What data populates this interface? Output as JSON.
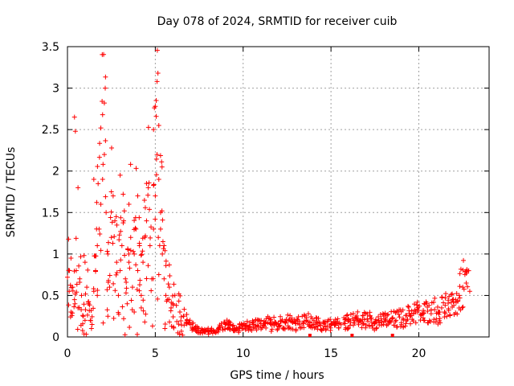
{
  "chart_data": {
    "type": "scatter",
    "title": "Day 078 of 2024, SRMTID for receiver cuib",
    "xlabel": "GPS time / hours",
    "ylabel": "SRMTID / TECUs",
    "xlim": [
      0,
      24
    ],
    "ylim": [
      0,
      3.5
    ],
    "x_ticks": [
      0,
      5,
      10,
      15,
      20
    ],
    "x_tick_labels": [
      "0",
      "5",
      "10",
      "15",
      "20"
    ],
    "y_ticks": [
      0,
      0.5,
      1,
      1.5,
      2,
      2.5,
      3,
      3.5
    ],
    "y_tick_labels": [
      "0",
      "0.5",
      "1",
      "1.5",
      "2",
      "2.5",
      "3",
      "3.5"
    ],
    "grid": true,
    "marker": "+",
    "marker_color": "#ff0000",
    "series": [
      {
        "name": "SRMTID",
        "x": [
          0.0,
          0.1,
          0.2,
          0.3,
          0.4,
          0.5,
          0.6,
          0.7,
          0.8,
          0.9,
          1.0,
          1.1,
          1.2,
          1.3,
          1.4,
          1.5,
          1.6,
          1.7,
          1.8,
          1.9,
          2.0,
          2.1,
          2.2,
          2.3,
          2.4,
          2.5,
          2.6,
          2.7,
          2.8,
          2.9,
          3.0,
          3.1,
          3.2,
          3.3,
          3.4,
          3.5,
          3.6,
          3.7,
          3.8,
          3.9,
          4.0,
          4.1,
          4.2,
          4.3,
          4.4,
          4.5,
          4.6,
          4.7,
          4.8,
          4.9,
          5.0,
          5.1,
          5.2,
          5.3,
          5.4,
          5.5,
          5.6,
          5.7,
          5.8,
          5.9,
          6.0,
          6.2,
          6.4,
          6.6,
          6.8,
          7.0,
          7.2,
          7.4,
          7.6,
          7.8,
          8.0,
          8.2,
          8.4,
          8.6,
          8.8,
          9.0,
          9.2,
          9.4,
          9.6,
          9.8,
          10.0,
          10.2,
          10.4,
          10.6,
          10.8,
          11.0,
          11.2,
          11.4,
          11.6,
          11.8,
          12.0,
          12.2,
          12.4,
          12.6,
          12.8,
          13.0,
          13.2,
          13.4,
          13.6,
          13.8,
          14.0,
          14.2,
          14.4,
          14.6,
          14.8,
          15.0,
          15.2,
          15.4,
          16.3,
          16.5,
          16.7,
          16.9,
          17.1,
          17.3,
          17.5,
          17.7,
          17.9,
          18.1,
          18.3,
          18.5,
          18.7,
          18.9,
          19.1,
          19.3,
          19.5,
          19.7,
          19.9,
          20.1,
          20.3,
          20.5,
          20.7,
          20.9,
          21.1,
          21.3,
          21.5,
          21.7,
          21.9,
          22.1,
          22.3,
          22.5,
          22.7,
          22.9,
          0.4,
          0.45,
          1.9,
          2.0,
          2.1,
          2.15,
          4.9,
          5.0,
          5.05,
          5.1,
          5.15,
          5.2,
          0.6,
          1.5,
          2.5,
          3.0,
          3.5,
          4.0,
          4.5,
          5.3,
          5.5,
          1.0,
          2.3,
          3.8,
          4.4,
          0.2,
          1.7,
          3.2,
          4.2
        ],
        "y": [
          0.72,
          0.55,
          0.3,
          0.6,
          0.45,
          0.8,
          0.35,
          0.7,
          0.5,
          0.25,
          0.9,
          0.6,
          0.4,
          0.2,
          0.15,
          0.55,
          0.8,
          1.1,
          1.3,
          1.6,
          1.9,
          2.2,
          1.5,
          1.0,
          0.6,
          1.2,
          1.7,
          1.4,
          0.9,
          0.5,
          0.8,
          1.1,
          1.4,
          0.7,
          0.4,
          0.9,
          1.2,
          0.6,
          1.0,
          1.3,
          0.8,
          1.1,
          0.5,
          0.9,
          1.2,
          1.4,
          1.8,
          1.1,
          0.7,
          1.3,
          1.7,
          2.2,
          1.9,
          1.3,
          1.0,
          0.7,
          0.5,
          0.45,
          0.6,
          0.35,
          0.4,
          0.38,
          0.3,
          0.25,
          0.2,
          0.15,
          0.1,
          0.08,
          0.07,
          0.06,
          0.07,
          0.08,
          0.06,
          0.1,
          0.12,
          0.15,
          0.14,
          0.1,
          0.09,
          0.11,
          0.1,
          0.13,
          0.12,
          0.15,
          0.14,
          0.16,
          0.13,
          0.17,
          0.15,
          0.18,
          0.16,
          0.19,
          0.17,
          0.2,
          0.18,
          0.16,
          0.19,
          0.17,
          0.2,
          0.18,
          0.15,
          0.17,
          0.14,
          0.16,
          0.13,
          0.15,
          0.14,
          0.16,
          0.2,
          0.22,
          0.18,
          0.21,
          0.19,
          0.23,
          0.17,
          0.2,
          0.18,
          0.21,
          0.19,
          0.22,
          0.2,
          0.24,
          0.22,
          0.26,
          0.25,
          0.28,
          0.3,
          0.27,
          0.29,
          0.31,
          0.28,
          0.33,
          0.3,
          0.35,
          0.38,
          0.32,
          0.36,
          0.45,
          0.5,
          0.6,
          0.65,
          0.55,
          2.65,
          2.48,
          2.52,
          2.68,
          2.82,
          3.0,
          2.5,
          2.78,
          2.85,
          3.08,
          3.18,
          2.55,
          1.8,
          1.9,
          1.75,
          1.95,
          1.6,
          1.7,
          1.85,
          1.5,
          1.1,
          0.2,
          0.25,
          0.3,
          0.18,
          0.95,
          0.5,
          0.22,
          0.35
        ],
        "gaps": [
          [
            15.5,
            16.2
          ]
        ]
      }
    ],
    "zero_markers_x": [
      13.8,
      16.2,
      18.5
    ]
  }
}
